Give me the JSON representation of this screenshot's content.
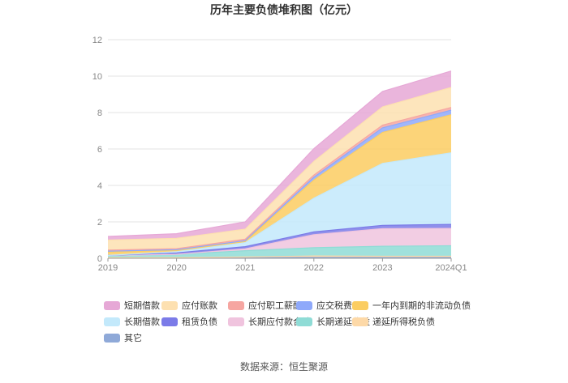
{
  "chart_data": {
    "type": "area",
    "stacked": true,
    "title": "历年主要负债堆积图（亿元）",
    "categories": [
      "2019",
      "2020",
      "2021",
      "2022",
      "2023",
      "2024Q1"
    ],
    "y_ticks": [
      0,
      2,
      4,
      6,
      8,
      10,
      12
    ],
    "ylim": [
      0,
      12
    ],
    "grid": true,
    "legend_position": "bottom",
    "series": [
      {
        "name": "其它",
        "color": "#8fa9d8",
        "values": [
          0.03,
          0.03,
          0.05,
          0.05,
          0.05,
          0.05
        ]
      },
      {
        "name": "递延所得税负债",
        "color": "#fdd9a8",
        "values": [
          0.01,
          0.01,
          0.02,
          0.08,
          0.06,
          0.06
        ]
      },
      {
        "name": "长期递延收益",
        "color": "#8fdcd6",
        "values": [
          0.12,
          0.18,
          0.35,
          0.45,
          0.55,
          0.58
        ]
      },
      {
        "name": "长期应付款合计",
        "color": "#f0c4de",
        "values": [
          0.0,
          0.0,
          0.1,
          0.72,
          0.97,
          0.95
        ]
      },
      {
        "name": "租赁负债",
        "color": "#7b7be8",
        "values": [
          0.0,
          0.08,
          0.12,
          0.15,
          0.18,
          0.22
        ]
      },
      {
        "name": "长期借款",
        "color": "#c3e9fb",
        "values": [
          0.0,
          0.06,
          0.22,
          1.85,
          3.4,
          3.93
        ]
      },
      {
        "name": "一年内到期的非流动负债",
        "color": "#fbcd62",
        "values": [
          0.18,
          0.07,
          0.06,
          1.0,
          1.7,
          2.09
        ]
      },
      {
        "name": "应交税费",
        "color": "#8fa9fa",
        "values": [
          0.05,
          0.04,
          0.05,
          0.15,
          0.25,
          0.25
        ]
      },
      {
        "name": "应付职工薪酬",
        "color": "#f6a6a1",
        "values": [
          0.06,
          0.06,
          0.08,
          0.12,
          0.15,
          0.15
        ]
      },
      {
        "name": "应付账款",
        "color": "#fde0b0",
        "values": [
          0.55,
          0.57,
          0.55,
          0.75,
          1.0,
          1.1
        ]
      },
      {
        "name": "短期借款",
        "color": "#e6a8d6",
        "values": [
          0.2,
          0.25,
          0.4,
          0.7,
          0.85,
          0.9
        ]
      }
    ]
  },
  "legend": [
    {
      "label": "短期借款",
      "color": "#e6a8d6"
    },
    {
      "label": "应付账款",
      "color": "#fde0b0"
    },
    {
      "label": "应付职工薪酬",
      "color": "#f6a6a1"
    },
    {
      "label": "应交税费",
      "color": "#8fa9fa"
    },
    {
      "label": "一年内到期的非流动负债",
      "color": "#fbcd62"
    },
    {
      "label": "长期借款",
      "color": "#c3e9fb"
    },
    {
      "label": "租赁负债",
      "color": "#7b7be8"
    },
    {
      "label": "长期应付款合计",
      "color": "#f0c4de"
    },
    {
      "label": "长期递延收益",
      "color": "#8fdcd6"
    },
    {
      "label": "递延所得税负债",
      "color": "#fdd9a8"
    },
    {
      "label": "其它",
      "color": "#8fa9d8"
    }
  ],
  "source": "数据来源：恒生聚源"
}
